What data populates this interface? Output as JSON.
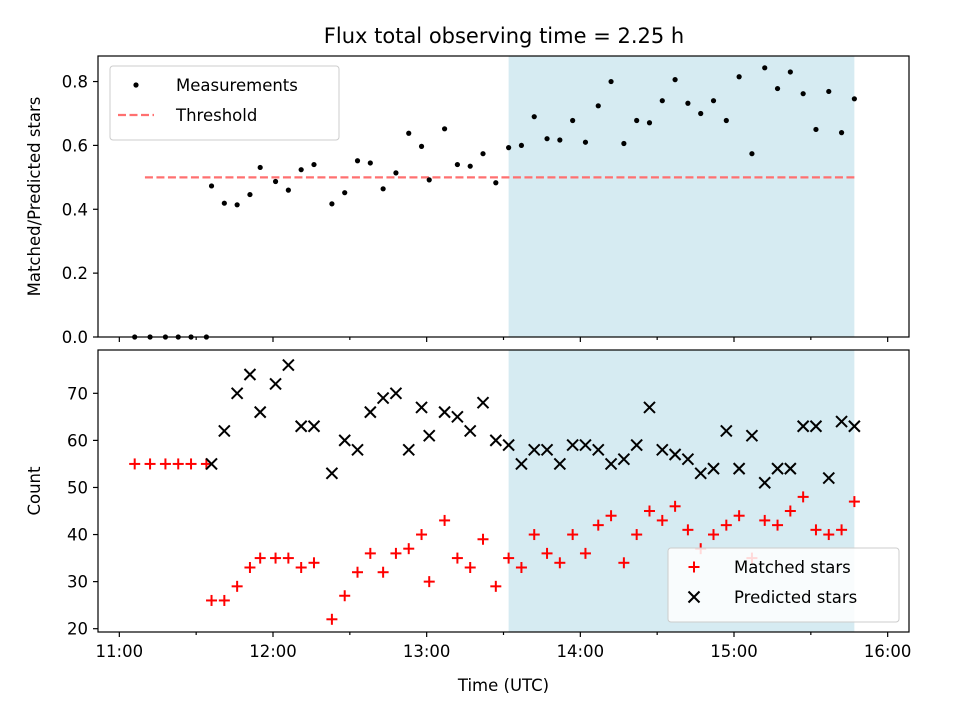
{
  "title": "Flux total observing time = 2.25 h",
  "colors": {
    "highlight": "#add8e6",
    "measurement": "#000000",
    "threshold": "#ff7070",
    "matched": "#ff0000",
    "predicted": "#000000"
  },
  "chart_data": [
    {
      "type": "scatter",
      "ylabel": "Matched/Predicted stars",
      "xlim": [
        "11:00",
        "16:00"
      ],
      "ylim": [
        0,
        0.88
      ],
      "yticks": [
        0.0,
        0.2,
        0.4,
        0.6,
        0.8
      ],
      "ytick_labels": [
        "0.0",
        "0.2",
        "0.4",
        "0.6",
        "0.8"
      ],
      "shaded_span": [
        "13:32",
        "15:47"
      ],
      "legend": {
        "placement": "top-left",
        "entries": [
          "Measurements",
          "Threshold"
        ]
      },
      "threshold": {
        "name": "Threshold",
        "y": 0.5,
        "x_range": [
          "11:10",
          "15:47"
        ]
      },
      "series": [
        {
          "name": "Measurements",
          "points": [
            [
              "11:06",
              0.0
            ],
            [
              "11:12",
              0.0
            ],
            [
              "11:18",
              0.0
            ],
            [
              "11:23",
              0.0
            ],
            [
              "11:28",
              0.0
            ],
            [
              "11:34",
              0.0
            ],
            [
              "11:36",
              0.473
            ],
            [
              "11:41",
              0.419
            ],
            [
              "11:46",
              0.414
            ],
            [
              "11:51",
              0.446
            ],
            [
              "11:55",
              0.531
            ],
            [
              "12:01",
              0.487
            ],
            [
              "12:06",
              0.46
            ],
            [
              "12:11",
              0.524
            ],
            [
              "12:16",
              0.54
            ],
            [
              "12:23",
              0.417
            ],
            [
              "12:28",
              0.452
            ],
            [
              "12:33",
              0.552
            ],
            [
              "12:38",
              0.545
            ],
            [
              "12:43",
              0.464
            ],
            [
              "12:48",
              0.514
            ],
            [
              "12:53",
              0.638
            ],
            [
              "12:58",
              0.597
            ],
            [
              "13:01",
              0.492
            ],
            [
              "13:07",
              0.652
            ],
            [
              "13:12",
              0.54
            ],
            [
              "13:17",
              0.535
            ],
            [
              "13:22",
              0.574
            ],
            [
              "13:27",
              0.483
            ],
            [
              "13:32",
              0.593
            ],
            [
              "13:37",
              0.6
            ],
            [
              "13:42",
              0.69
            ],
            [
              "13:47",
              0.621
            ],
            [
              "13:52",
              0.617
            ],
            [
              "13:57",
              0.678
            ],
            [
              "14:02",
              0.61
            ],
            [
              "14:07",
              0.724
            ],
            [
              "14:12",
              0.8
            ],
            [
              "14:17",
              0.606
            ],
            [
              "14:22",
              0.678
            ],
            [
              "14:27",
              0.671
            ],
            [
              "14:32",
              0.74
            ],
            [
              "14:37",
              0.806
            ],
            [
              "14:42",
              0.732
            ],
            [
              "14:47",
              0.7
            ],
            [
              "14:52",
              0.74
            ],
            [
              "14:57",
              0.678
            ],
            [
              "15:02",
              0.815
            ],
            [
              "15:07",
              0.574
            ],
            [
              "15:12",
              0.843
            ],
            [
              "15:17",
              0.778
            ],
            [
              "15:22",
              0.83
            ],
            [
              "15:27",
              0.762
            ],
            [
              "15:32",
              0.65
            ],
            [
              "15:37",
              0.769
            ],
            [
              "15:42",
              0.64
            ],
            [
              "15:47",
              0.746
            ]
          ]
        }
      ]
    },
    {
      "type": "scatter",
      "xlabel": "Time (UTC)",
      "ylabel": "Count",
      "xlim": [
        "11:00",
        "16:00"
      ],
      "ylim": [
        19.3,
        79.2
      ],
      "xticks": [
        "11:00",
        "12:00",
        "13:00",
        "14:00",
        "15:00",
        "16:00"
      ],
      "xtick_labels": [
        "11:00",
        "12:00",
        "13:00",
        "14:00",
        "15:00",
        "16:00"
      ],
      "yticks": [
        20,
        30,
        40,
        50,
        60,
        70
      ],
      "ytick_labels": [
        "20",
        "30",
        "40",
        "50",
        "60",
        "70"
      ],
      "shaded_span": [
        "13:32",
        "15:47"
      ],
      "legend": {
        "placement": "bottom-right",
        "entries": [
          "Matched stars",
          "Predicted stars"
        ]
      },
      "series": [
        {
          "name": "Matched stars",
          "marker": "plus",
          "points": [
            [
              "11:06",
              55
            ],
            [
              "11:12",
              55
            ],
            [
              "11:18",
              55
            ],
            [
              "11:23",
              55
            ],
            [
              "11:28",
              55
            ],
            [
              "11:34",
              55
            ],
            [
              "11:36",
              26
            ],
            [
              "11:41",
              26
            ],
            [
              "11:46",
              29
            ],
            [
              "11:51",
              33
            ],
            [
              "11:55",
              35
            ],
            [
              "12:01",
              35
            ],
            [
              "12:06",
              35
            ],
            [
              "12:11",
              33
            ],
            [
              "12:16",
              34
            ],
            [
              "12:23",
              22
            ],
            [
              "12:28",
              27
            ],
            [
              "12:33",
              32
            ],
            [
              "12:38",
              36
            ],
            [
              "12:43",
              32
            ],
            [
              "12:48",
              36
            ],
            [
              "12:53",
              37
            ],
            [
              "12:58",
              40
            ],
            [
              "13:01",
              30
            ],
            [
              "13:07",
              43
            ],
            [
              "13:12",
              35
            ],
            [
              "13:17",
              33
            ],
            [
              "13:22",
              39
            ],
            [
              "13:27",
              29
            ],
            [
              "13:32",
              35
            ],
            [
              "13:37",
              33
            ],
            [
              "13:42",
              40
            ],
            [
              "13:47",
              36
            ],
            [
              "13:52",
              34
            ],
            [
              "13:57",
              40
            ],
            [
              "14:02",
              36
            ],
            [
              "14:07",
              42
            ],
            [
              "14:12",
              44
            ],
            [
              "14:17",
              34
            ],
            [
              "14:22",
              40
            ],
            [
              "14:27",
              45
            ],
            [
              "14:32",
              43
            ],
            [
              "14:37",
              46
            ],
            [
              "14:42",
              41
            ],
            [
              "14:47",
              37
            ],
            [
              "14:52",
              40
            ],
            [
              "14:57",
              42
            ],
            [
              "15:02",
              44
            ],
            [
              "15:07",
              35
            ],
            [
              "15:12",
              43
            ],
            [
              "15:17",
              42
            ],
            [
              "15:22",
              45
            ],
            [
              "15:27",
              48
            ],
            [
              "15:32",
              41
            ],
            [
              "15:37",
              40
            ],
            [
              "15:42",
              41
            ],
            [
              "15:47",
              47
            ]
          ]
        },
        {
          "name": "Predicted stars",
          "marker": "x",
          "points": [
            [
              "11:36",
              55
            ],
            [
              "11:41",
              62
            ],
            [
              "11:46",
              70
            ],
            [
              "11:51",
              74
            ],
            [
              "11:55",
              66
            ],
            [
              "12:01",
              72
            ],
            [
              "12:06",
              76
            ],
            [
              "12:11",
              63
            ],
            [
              "12:16",
              63
            ],
            [
              "12:23",
              53
            ],
            [
              "12:28",
              60
            ],
            [
              "12:33",
              58
            ],
            [
              "12:38",
              66
            ],
            [
              "12:43",
              69
            ],
            [
              "12:48",
              70
            ],
            [
              "12:53",
              58
            ],
            [
              "12:58",
              67
            ],
            [
              "13:01",
              61
            ],
            [
              "13:07",
              66
            ],
            [
              "13:12",
              65
            ],
            [
              "13:17",
              62
            ],
            [
              "13:22",
              68
            ],
            [
              "13:27",
              60
            ],
            [
              "13:32",
              59
            ],
            [
              "13:37",
              55
            ],
            [
              "13:42",
              58
            ],
            [
              "13:47",
              58
            ],
            [
              "13:52",
              55
            ],
            [
              "13:57",
              59
            ],
            [
              "14:02",
              59
            ],
            [
              "14:07",
              58
            ],
            [
              "14:12",
              55
            ],
            [
              "14:17",
              56
            ],
            [
              "14:22",
              59
            ],
            [
              "14:27",
              67
            ],
            [
              "14:32",
              58
            ],
            [
              "14:37",
              57
            ],
            [
              "14:42",
              56
            ],
            [
              "14:47",
              53
            ],
            [
              "14:52",
              54
            ],
            [
              "14:57",
              62
            ],
            [
              "15:02",
              54
            ],
            [
              "15:07",
              61
            ],
            [
              "15:12",
              51
            ],
            [
              "15:17",
              54
            ],
            [
              "15:22",
              54
            ],
            [
              "15:27",
              63
            ],
            [
              "15:32",
              63
            ],
            [
              "15:37",
              52
            ],
            [
              "15:42",
              64
            ],
            [
              "15:47",
              63
            ]
          ]
        }
      ]
    }
  ]
}
